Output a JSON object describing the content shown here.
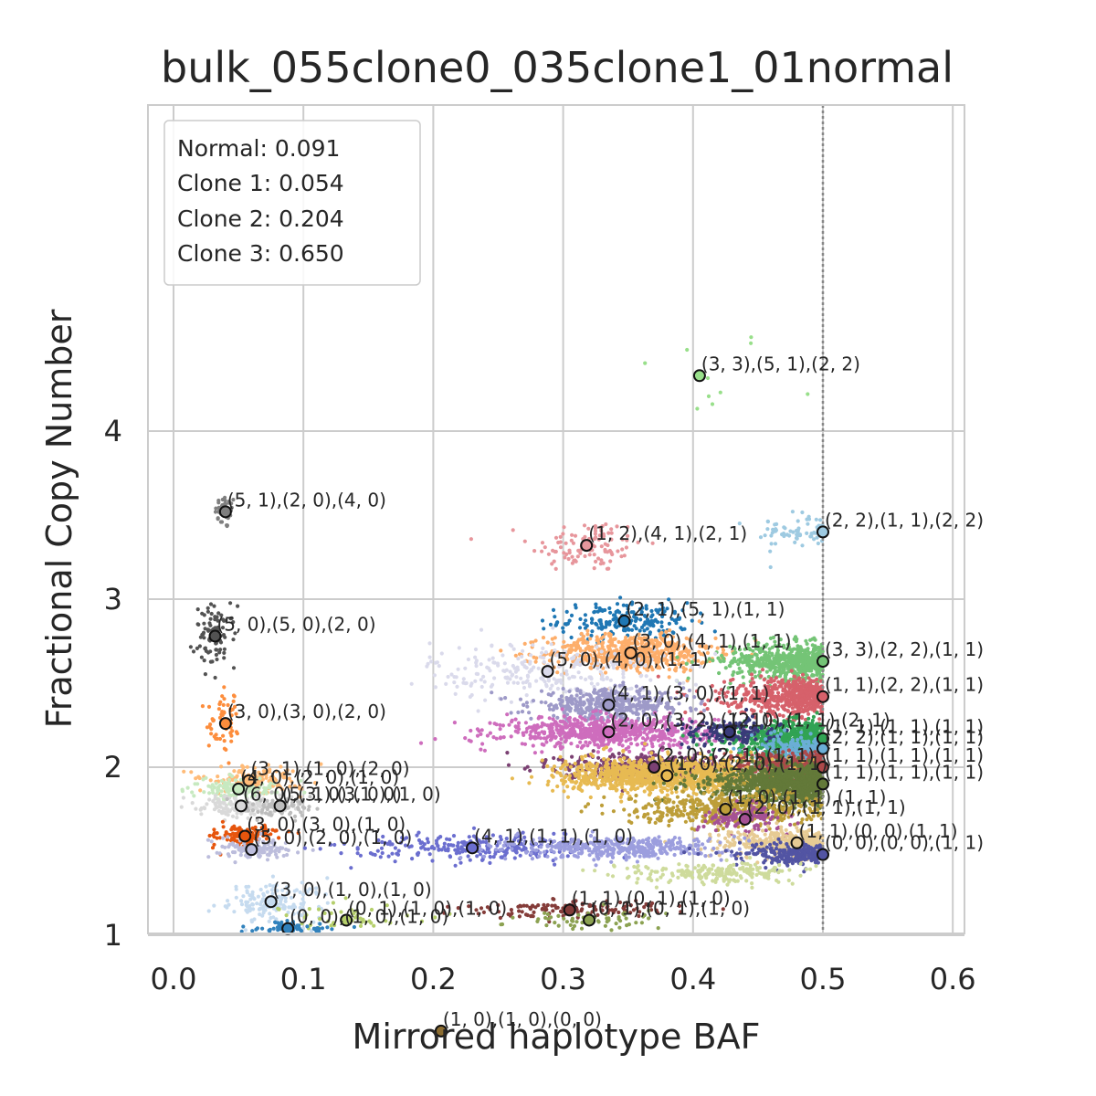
{
  "chart_data": {
    "type": "scatter",
    "title": "bulk_055clone0_035clone1_01normal",
    "xlabel": "Mirrored haplotype BAF",
    "ylabel": "Fractional Copy Number",
    "xlim": [
      -0.02,
      0.61
    ],
    "ylim": [
      0,
      4.93
    ],
    "xticks": [
      0.0,
      0.1,
      0.2,
      0.3,
      0.4,
      0.5,
      0.6
    ],
    "xtick_labels": [
      "0.0",
      "0.1",
      "0.2",
      "0.3",
      "0.4",
      "0.5",
      "0.6"
    ],
    "yticks": [
      1,
      2,
      3,
      4
    ],
    "ytick_labels": [
      "1",
      "2",
      "3",
      "4"
    ],
    "grid": true,
    "reference_line_x": 0.5,
    "legend": {
      "placement": "top-left",
      "lines": [
        "Normal: 0.091",
        "Clone 1: 0.054",
        "Clone 2: 0.204",
        "Clone 3: 0.650"
      ]
    },
    "clusters": [
      {
        "color": "#98df8a",
        "x": 0.405,
        "y": 4.33,
        "sx": 0.03,
        "sy": 0.15,
        "n": 10,
        "label": "(3, 3),(5, 1),(2, 2)"
      },
      {
        "color": "#7f7f7f",
        "x": 0.04,
        "y": 3.52,
        "sx": 0.004,
        "sy": 0.05,
        "n": 45,
        "label": "(5, 1),(2, 0),(4, 0)"
      },
      {
        "color": "#e7969c",
        "x": 0.318,
        "y": 3.32,
        "sx": 0.022,
        "sy": 0.08,
        "n": 110,
        "label": "(1, 2),(4, 1),(2, 1)"
      },
      {
        "color": "#9ecae1",
        "x": 0.5,
        "y": 3.4,
        "sx": 0.026,
        "sy": 0.05,
        "n": 70,
        "label": "(2, 2),(1, 1),(2, 2)"
      },
      {
        "color": "#1f77b4",
        "x": 0.347,
        "y": 2.87,
        "sx": 0.025,
        "sy": 0.055,
        "n": 200,
        "label": "(2, 1),(5, 1),(1, 1)"
      },
      {
        "color": "#525252",
        "x": 0.032,
        "y": 2.78,
        "sx": 0.008,
        "sy": 0.09,
        "n": 90,
        "label": "(5, 0),(5, 0),(2, 0)"
      },
      {
        "color": "#fdae6b",
        "x": 0.352,
        "y": 2.68,
        "sx": 0.032,
        "sy": 0.055,
        "n": 600,
        "label": "(3, 0),(4, 1),(1, 1)"
      },
      {
        "color": "#74c476",
        "x": 0.5,
        "y": 2.63,
        "sx": 0.035,
        "sy": 0.055,
        "n": 600,
        "label": "(3, 3),(2, 2),(1, 1)"
      },
      {
        "color": "#dadaeb",
        "x": 0.288,
        "y": 2.57,
        "sx": 0.045,
        "sy": 0.09,
        "n": 260,
        "label": "(5, 0),(4, 0),(1, 1)"
      },
      {
        "color": "#d6616b",
        "x": 0.5,
        "y": 2.42,
        "sx": 0.035,
        "sy": 0.055,
        "n": 600,
        "label": "(1, 1),(2, 2),(1, 1)"
      },
      {
        "color": "#9e9ac8",
        "x": 0.335,
        "y": 2.37,
        "sx": 0.03,
        "sy": 0.045,
        "n": 450,
        "label": "(4, 1),(3, 0),(1, 1)"
      },
      {
        "color": "#fd8d3c",
        "x": 0.04,
        "y": 2.26,
        "sx": 0.007,
        "sy": 0.09,
        "n": 60,
        "label": "(3, 0),(3, 0),(2, 0)"
      },
      {
        "color": "#ce6dbd",
        "x": 0.335,
        "y": 2.21,
        "sx": 0.04,
        "sy": 0.045,
        "n": 700,
        "label": "(2, 0),(3, 2),(1, 1)"
      },
      {
        "color": "#31a354",
        "x": 0.5,
        "y": 2.17,
        "sx": 0.033,
        "sy": 0.05,
        "n": 700,
        "label": "(1, 1),(1, 1),(1, 1)"
      },
      {
        "color": "#393b79",
        "x": 0.428,
        "y": 2.21,
        "sx": 0.018,
        "sy": 0.04,
        "n": 150,
        "label": "(2, 0),(1, 1),(2, 1)"
      },
      {
        "color": "#6baed6",
        "x": 0.5,
        "y": 2.11,
        "sx": 0.022,
        "sy": 0.04,
        "n": 200,
        "label": "(2, 2),(1, 1),(1, 1)"
      },
      {
        "color": "#7b4173",
        "x": 0.37,
        "y": 2.0,
        "sx": 0.035,
        "sy": 0.04,
        "n": 500,
        "label": "(2, 0),(2, 1),(1, 1)"
      },
      {
        "color": "#ad494a",
        "x": 0.5,
        "y": 2.0,
        "sx": 0.035,
        "sy": 0.045,
        "n": 500,
        "label": "(1, 1),(1, 1),(1, 1)"
      },
      {
        "color": "#e7ba52",
        "x": 0.38,
        "y": 1.95,
        "sx": 0.04,
        "sy": 0.05,
        "n": 1100,
        "label": "(1, 0),(2, 0),(1, 1)"
      },
      {
        "color": "#637939",
        "x": 0.5,
        "y": 1.9,
        "sx": 0.04,
        "sy": 0.06,
        "n": 1000,
        "label": "(1, 1),(1, 1),(1, 1)"
      },
      {
        "color": "#ffbb78",
        "x": 0.058,
        "y": 1.92,
        "sx": 0.02,
        "sy": 0.04,
        "n": 160,
        "label": "(3, 1),(1, 0),(2, 0)"
      },
      {
        "color": "#c7e9c0",
        "x": 0.05,
        "y": 1.87,
        "sx": 0.018,
        "sy": 0.035,
        "n": 140,
        "label": "(4, 0),(2, 0),(1, 0)"
      },
      {
        "color": "#d9d9d9",
        "x": 0.052,
        "y": 1.77,
        "sx": 0.018,
        "sy": 0.035,
        "n": 140,
        "label": "(6, 0),(3, 0),(1, 0)"
      },
      {
        "color": "#bdbdbd",
        "x": 0.082,
        "y": 1.77,
        "sx": 0.014,
        "sy": 0.03,
        "n": 80,
        "label": "(5, 1),(3, 0),(1, 0)"
      },
      {
        "color": "#bd9e39",
        "x": 0.425,
        "y": 1.75,
        "sx": 0.04,
        "sy": 0.05,
        "n": 450,
        "label": "(1, 0),(1, 1),(1, 1)"
      },
      {
        "color": "#a55194",
        "x": 0.44,
        "y": 1.69,
        "sx": 0.018,
        "sy": 0.04,
        "n": 120,
        "label": "(2, 0),(1, 1),(1, 1)"
      },
      {
        "color": "#e7cb94",
        "x": 0.48,
        "y": 1.55,
        "sx": 0.035,
        "sy": 0.04,
        "n": 400,
        "label": "(1, 1),(0, 0),(1, 1)"
      },
      {
        "color": "#e6550d",
        "x": 0.055,
        "y": 1.59,
        "sx": 0.012,
        "sy": 0.03,
        "n": 130,
        "label": "(3, 0),(3, 0),(1, 0)"
      },
      {
        "color": "#bcbddc",
        "x": 0.06,
        "y": 1.51,
        "sx": 0.014,
        "sy": 0.03,
        "n": 120,
        "label": "(5, 0),(2, 0),(1, 0)"
      },
      {
        "color": "#6b6ecf",
        "x": 0.23,
        "y": 1.52,
        "sx": 0.045,
        "sy": 0.04,
        "n": 250,
        "label": "(4, 1),(1, 1),(1, 0)"
      },
      {
        "color": "#9c9ede",
        "x": 0.34,
        "y": 1.52,
        "sx": 0.045,
        "sy": 0.03,
        "n": 400,
        "label": ""
      },
      {
        "color": "#5254a3",
        "x": 0.5,
        "y": 1.48,
        "sx": 0.035,
        "sy": 0.035,
        "n": 250,
        "label": "(0, 0),(0, 0),(1, 1)"
      },
      {
        "color": "#cedb9c",
        "x": 0.42,
        "y": 1.37,
        "sx": 0.035,
        "sy": 0.03,
        "n": 220,
        "label": ""
      },
      {
        "color": "#c6dbef",
        "x": 0.075,
        "y": 1.2,
        "sx": 0.02,
        "sy": 0.07,
        "n": 150,
        "label": "(3, 0),(1, 0),(1, 0)"
      },
      {
        "color": "#843c39",
        "x": 0.305,
        "y": 1.15,
        "sx": 0.04,
        "sy": 0.025,
        "n": 130,
        "label": "(1, 1),(0, 1),(1, 0)"
      },
      {
        "color": "#b5cf6b",
        "x": 0.133,
        "y": 1.09,
        "sx": 0.03,
        "sy": 0.06,
        "n": 50,
        "label": "(0, 1),(1, 0),(1, 0)"
      },
      {
        "color": "#8ca252",
        "x": 0.32,
        "y": 1.09,
        "sx": 0.025,
        "sy": 0.03,
        "n": 60,
        "label": "(0, 1),(0, 1),(1, 0)"
      },
      {
        "color": "#3182bd",
        "x": 0.088,
        "y": 1.04,
        "sx": 0.015,
        "sy": 0.02,
        "n": 80,
        "label": "(0, 0),(1, 0),(1, 0)"
      },
      {
        "color": "#8c6d31",
        "x": 0.206,
        "y": 0.43,
        "sx": 0.045,
        "sy": 0.12,
        "n": 60,
        "label": "(1, 0),(1, 0),(0, 0)"
      }
    ]
  }
}
